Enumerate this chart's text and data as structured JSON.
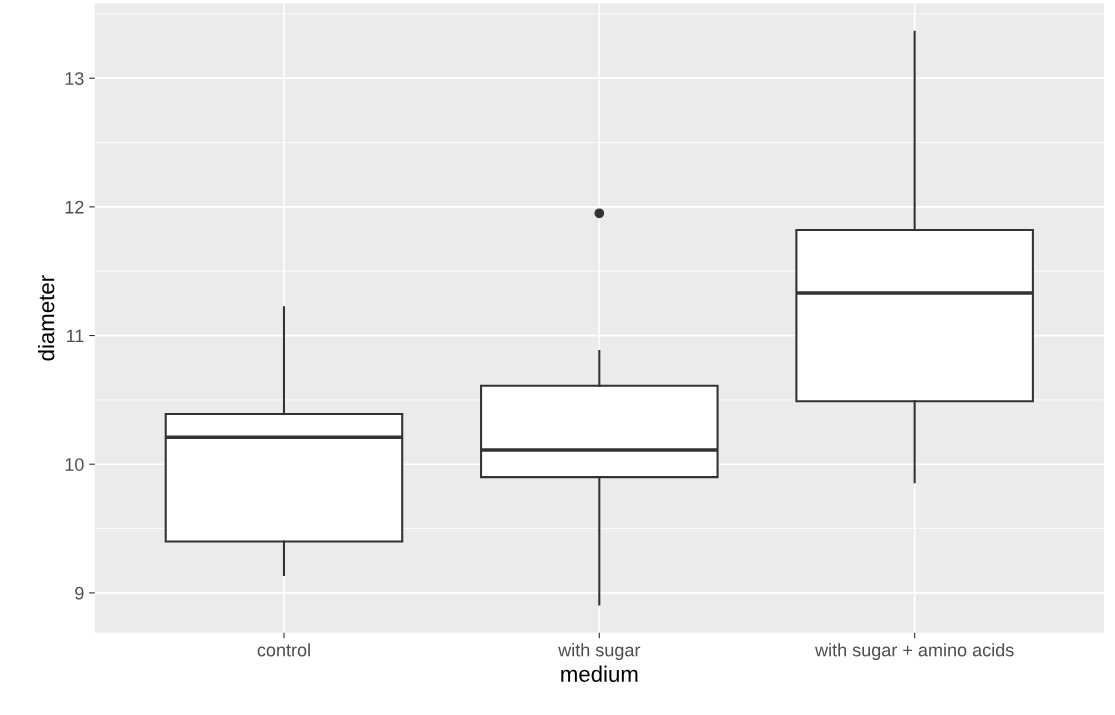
{
  "chart_data": {
    "type": "box",
    "xlabel": "medium",
    "ylabel": "diameter",
    "categories": [
      "control",
      "with sugar",
      "with sugar + amino acids"
    ],
    "boxes": [
      {
        "low": 9.14,
        "q1": 9.4,
        "median": 10.21,
        "q3": 10.39,
        "high": 11.22
      },
      {
        "low": 8.91,
        "q1": 9.9,
        "median": 10.11,
        "q3": 10.61,
        "high": 10.88,
        "outliers": [
          11.95
        ]
      },
      {
        "low": 9.86,
        "q1": 10.49,
        "median": 11.33,
        "q3": 11.82,
        "high": 13.36
      }
    ],
    "color": "#333333",
    "ylim": [
      8.69,
      13.58
    ],
    "yticks": [
      9,
      10,
      11,
      12,
      13
    ],
    "grid": true
  }
}
